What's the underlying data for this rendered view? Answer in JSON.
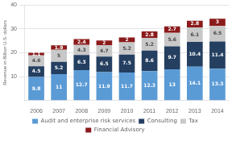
{
  "chart_data": {
    "type": "bar",
    "stacked": true,
    "data_labels": true,
    "grid": true,
    "legend": "bottom",
    "ylabel": "Revenue in Billion U.S. dollars",
    "categories": [
      "2006",
      "2007",
      "2008",
      "2009",
      "2010",
      "2011",
      "2012",
      "2013",
      "2014"
    ],
    "series": [
      {
        "name": "Audit and enterprise risk services",
        "color": "#5b9bd5",
        "values": [
          9.8,
          11,
          12.7,
          11.9,
          11.7,
          12.3,
          13,
          14.1,
          13.3
        ]
      },
      {
        "name": "Consulting",
        "color": "#243f60",
        "values": [
          4.5,
          5.2,
          6.3,
          6.5,
          7.5,
          8.6,
          9.7,
          10.4,
          11.4
        ]
      },
      {
        "name": "Tax",
        "color": "#c8c8c8",
        "values": [
          4.6,
          5,
          4.3,
          4.7,
          5.2,
          5.2,
          5.6,
          6.1,
          6.5
        ]
      },
      {
        "name": "Financial Advisory",
        "color": "#8b1a1a",
        "values": [
          1.1,
          1.9,
          2.4,
          2,
          2,
          2.8,
          2.7,
          2.8,
          3
        ]
      }
    ],
    "ylim": [
      0,
      40
    ],
    "yticks": [
      10,
      20,
      30,
      40
    ]
  }
}
